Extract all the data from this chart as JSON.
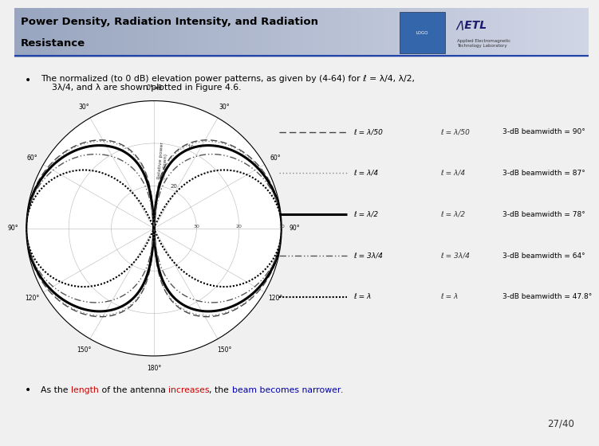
{
  "title_line1": "Power Density, Radiation Intensity, and Radiation",
  "title_line2": "Resistance",
  "title_color": "#000000",
  "header_bg": "#b8c4d8",
  "header_gradient_right": "#e8ecf4",
  "bg_color": "#f0f0f0",
  "content_bg": "#f5f5f5",
  "bullet1": "The normalized (to 0 dB) elevation power patterns, as given by (4-64) for ℓ = λ/4, λ/2,\n    3λ/4, and λ are shown plotted in Figure 4.6.",
  "bullet2_parts": [
    {
      "text": "As the ",
      "color": "#000000"
    },
    {
      "text": "length",
      "color": "#cc0000"
    },
    {
      "text": " of the antenna ",
      "color": "#000000"
    },
    {
      "text": "increases",
      "color": "#cc0000"
    },
    {
      "text": ", the ",
      "color": "#000000"
    },
    {
      "text": "beam becomes narrower",
      "color": "#0000aa"
    },
    {
      "text": ".",
      "color": "#000000"
    }
  ],
  "page_number": "27/40",
  "legend_entries": [
    {
      "label": "ℓ = λ/50",
      "label2": "ℓ = λ/50",
      "bw": "3-dB beamwidth = 90°",
      "style": "dashed",
      "color": "#444444",
      "linewidth": 1.0
    },
    {
      "label": "ℓ = λ/4",
      "label2": "ℓ = λ/4",
      "bw": "3-dB beamwidth = 87°",
      "style": "loosedot",
      "color": "#888888",
      "linewidth": 1.0
    },
    {
      "label": "ℓ = λ/2",
      "label2": "ℓ = λ/2",
      "bw": "3-dB beamwidth = 78°",
      "style": "solid",
      "color": "#000000",
      "linewidth": 2.2
    },
    {
      "label": "ℓ = 3λ/4",
      "label2": "ℓ = 3λ/4",
      "bw": "3-dB beamwidth = 64°",
      "style": "dashdot2",
      "color": "#555555",
      "linewidth": 1.0
    },
    {
      "label": "ℓ = λ",
      "label2": "ℓ = λ",
      "bw": "3-dB beamwidth = 47.8°",
      "style": "dots",
      "color": "#000000",
      "linewidth": 1.5
    }
  ],
  "polar_bg": "#ffffff",
  "polar_grid_color": "#999999",
  "dB_min": -30
}
